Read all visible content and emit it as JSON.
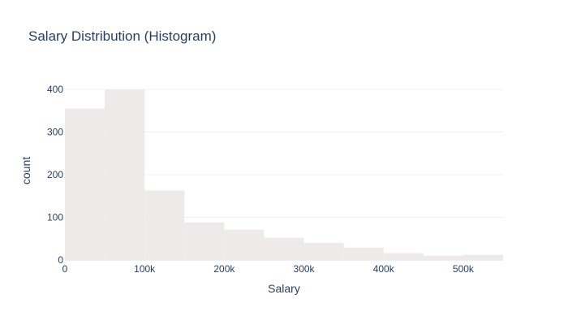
{
  "chart_data": {
    "type": "bar",
    "subtype": "histogram",
    "title": "Salary Distribution (Histogram)",
    "xlabel": "Salary",
    "ylabel": "count",
    "bar_color": "#eeeaea",
    "grid": true,
    "xlim": [
      0,
      550000
    ],
    "ylim": [
      0,
      400
    ],
    "x_ticks": [
      {
        "value": 0,
        "label": "0"
      },
      {
        "value": 100000,
        "label": "100k"
      },
      {
        "value": 200000,
        "label": "200k"
      },
      {
        "value": 300000,
        "label": "300k"
      },
      {
        "value": 400000,
        "label": "400k"
      },
      {
        "value": 500000,
        "label": "500k"
      }
    ],
    "y_ticks": [
      {
        "value": 0,
        "label": "0"
      },
      {
        "value": 100,
        "label": "100"
      },
      {
        "value": 200,
        "label": "200"
      },
      {
        "value": 300,
        "label": "300"
      },
      {
        "value": 400,
        "label": "400"
      }
    ],
    "bins": [
      {
        "start": 0,
        "end": 50000,
        "count": 355
      },
      {
        "start": 50000,
        "end": 100000,
        "count": 400
      },
      {
        "start": 100000,
        "end": 150000,
        "count": 163
      },
      {
        "start": 150000,
        "end": 200000,
        "count": 88
      },
      {
        "start": 200000,
        "end": 250000,
        "count": 71
      },
      {
        "start": 250000,
        "end": 300000,
        "count": 52
      },
      {
        "start": 300000,
        "end": 350000,
        "count": 40
      },
      {
        "start": 350000,
        "end": 400000,
        "count": 29
      },
      {
        "start": 400000,
        "end": 450000,
        "count": 16
      },
      {
        "start": 450000,
        "end": 500000,
        "count": 10
      },
      {
        "start": 500000,
        "end": 550000,
        "count": 12
      }
    ]
  }
}
